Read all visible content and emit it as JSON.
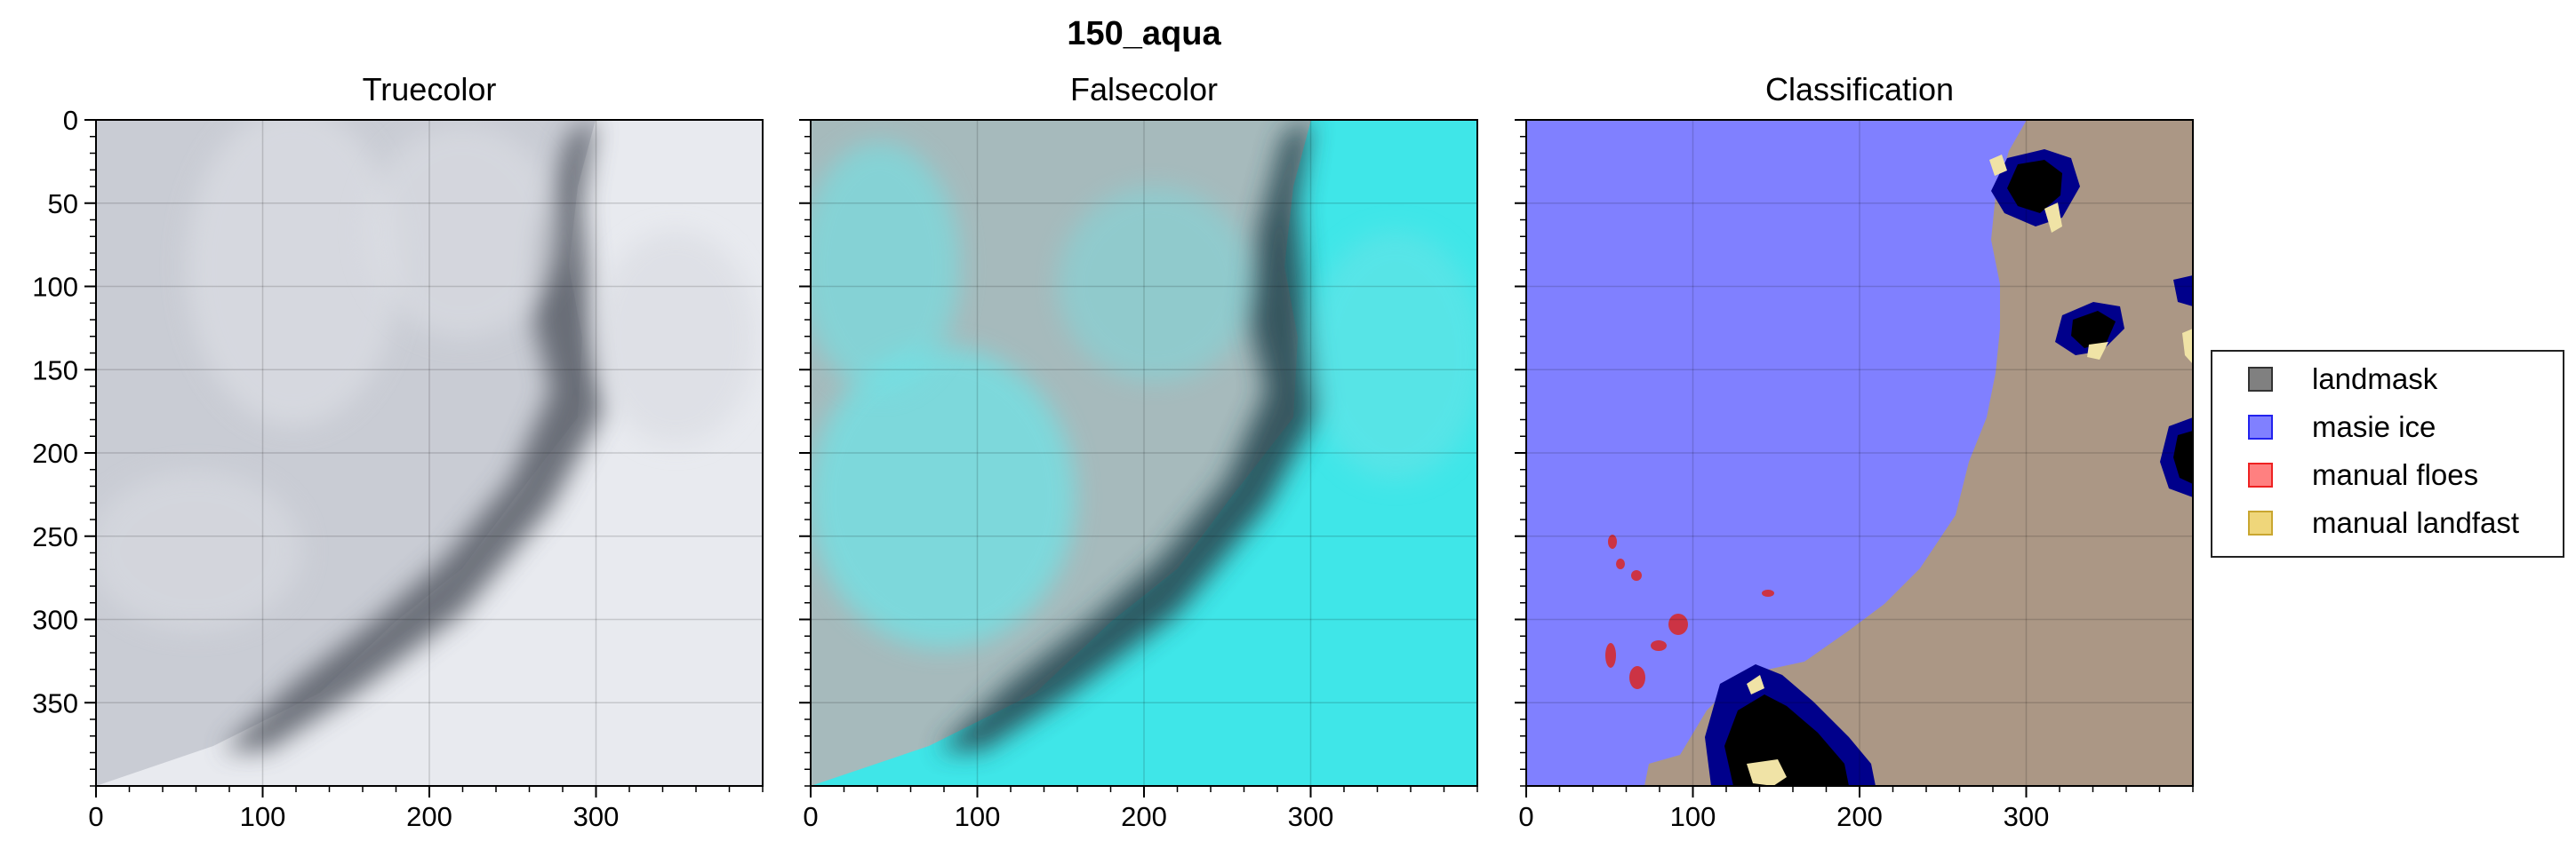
{
  "figure": {
    "suptitle": "150_aqua"
  },
  "chart_data": [
    {
      "type": "image",
      "title": "Truecolor",
      "x_ticks": [
        "0",
        "100",
        "200",
        "300"
      ],
      "y_ticks": [
        "0",
        "50",
        "100",
        "150",
        "200",
        "250",
        "300",
        "350"
      ],
      "xlim": [
        0,
        400
      ],
      "ylim": [
        400,
        0
      ],
      "grid": true,
      "palette": {
        "cloud": "#dcdee4",
        "ice": "#c9ccd4",
        "ocean": "#5e636d",
        "clear": "#e8eaef"
      }
    },
    {
      "type": "image",
      "title": "Falsecolor",
      "x_ticks": [
        "0",
        "100",
        "200",
        "300"
      ],
      "y_ticks": [],
      "xlim": [
        0,
        400
      ],
      "ylim": [
        400,
        0
      ],
      "grid": true,
      "palette": {
        "cloud": "#6fe3e6",
        "ice": "#b9b1b4",
        "ocean": "#2b4c55",
        "clear": "#3fe6e8"
      }
    },
    {
      "type": "image",
      "title": "Classification",
      "x_ticks": [
        "0",
        "100",
        "200",
        "300"
      ],
      "y_ticks": [],
      "xlim": [
        0,
        400
      ],
      "ylim": [
        400,
        0
      ],
      "grid": true,
      "palette": {
        "masie": "#8080ff",
        "land": "#ab9785",
        "dark": "#000000",
        "navy": "#00008b",
        "floes": "#cc3344",
        "landfast": "#f0e3a6"
      }
    }
  ],
  "legend": {
    "placement": "right",
    "items": [
      {
        "label": "landmask",
        "color": "#808080",
        "edge": "#333333"
      },
      {
        "label": "masie ice",
        "color": "#8080ff",
        "edge": "#2222ee"
      },
      {
        "label": "manual floes",
        "color": "#ff8080",
        "edge": "#ee2222"
      },
      {
        "label": "manual landfast",
        "color": "#efd67a",
        "edge": "#c9a630"
      }
    ]
  }
}
